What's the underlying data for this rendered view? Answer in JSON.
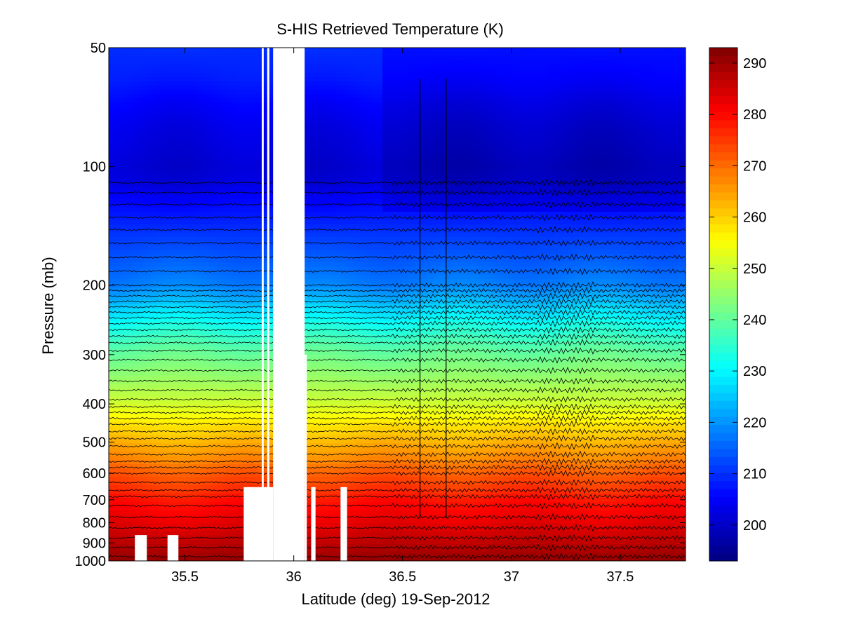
{
  "chart_data": {
    "type": "heatmap",
    "title": "S-HIS Retrieved Temperature (K)",
    "xlabel": "Latitude (deg) 19-Sep-2012",
    "ylabel": "Pressure (mb)",
    "xlim": [
      35.15,
      37.8
    ],
    "ylim": [
      1000,
      50
    ],
    "y_scale": "log",
    "y_reversed": true,
    "x_ticks": [
      35.5,
      36,
      36.5,
      37,
      37.5
    ],
    "x_tick_labels": [
      "35.5",
      "36",
      "36.5",
      "37",
      "37.5"
    ],
    "y_ticks": [
      50,
      100,
      200,
      300,
      400,
      500,
      600,
      700,
      800,
      900,
      1000
    ],
    "y_tick_labels": [
      "50",
      "100",
      "200",
      "300",
      "400",
      "500",
      "600",
      "700",
      "800",
      "900",
      "1000"
    ],
    "colorbar": {
      "range": [
        193,
        293
      ],
      "ticks": [
        200,
        210,
        220,
        230,
        240,
        250,
        260,
        270,
        280,
        290
      ],
      "tick_labels": [
        "200",
        "210",
        "220",
        "230",
        "240",
        "250",
        "260",
        "270",
        "280",
        "290"
      ],
      "colormap": "jet"
    },
    "temperature_profile": {
      "pressure": [
        50,
        60,
        70,
        80,
        90,
        100,
        110,
        120,
        130,
        150,
        170,
        200,
        220,
        250,
        280,
        300,
        350,
        400,
        450,
        500,
        550,
        600,
        650,
        700,
        750,
        800,
        850,
        900,
        950,
        1000
      ],
      "temperature": [
        210,
        208,
        205,
        203,
        202,
        201,
        202,
        205,
        207,
        211,
        214,
        218,
        224,
        232,
        238,
        241,
        246,
        251,
        258,
        263,
        267,
        272,
        275,
        279,
        281,
        283,
        285,
        287,
        289,
        291
      ]
    },
    "gap_regions": [
      {
        "lat": [
          35.853,
          35.862
        ],
        "p": [
          50,
          1000
        ]
      },
      {
        "lat": [
          35.878,
          35.888
        ],
        "p": [
          50,
          1000
        ]
      },
      {
        "lat": [
          35.905,
          36.05
        ],
        "p": [
          50,
          1000
        ]
      },
      {
        "lat": [
          36.05,
          36.06
        ],
        "p": [
          300,
          1000
        ]
      },
      {
        "lat": [
          35.77,
          35.905
        ],
        "p": [
          650,
          1000
        ]
      },
      {
        "lat": [
          35.27,
          35.325
        ],
        "p": [
          860,
          1000
        ]
      },
      {
        "lat": [
          35.42,
          35.47
        ],
        "p": [
          860,
          1000
        ]
      },
      {
        "lat": [
          36.08,
          36.1
        ],
        "p": [
          650,
          1000
        ]
      },
      {
        "lat": [
          36.215,
          36.245
        ],
        "p": [
          650,
          1000
        ]
      }
    ],
    "contour_interval_K": 2,
    "contour_color": "#000000",
    "background_color": "#ffffff"
  }
}
